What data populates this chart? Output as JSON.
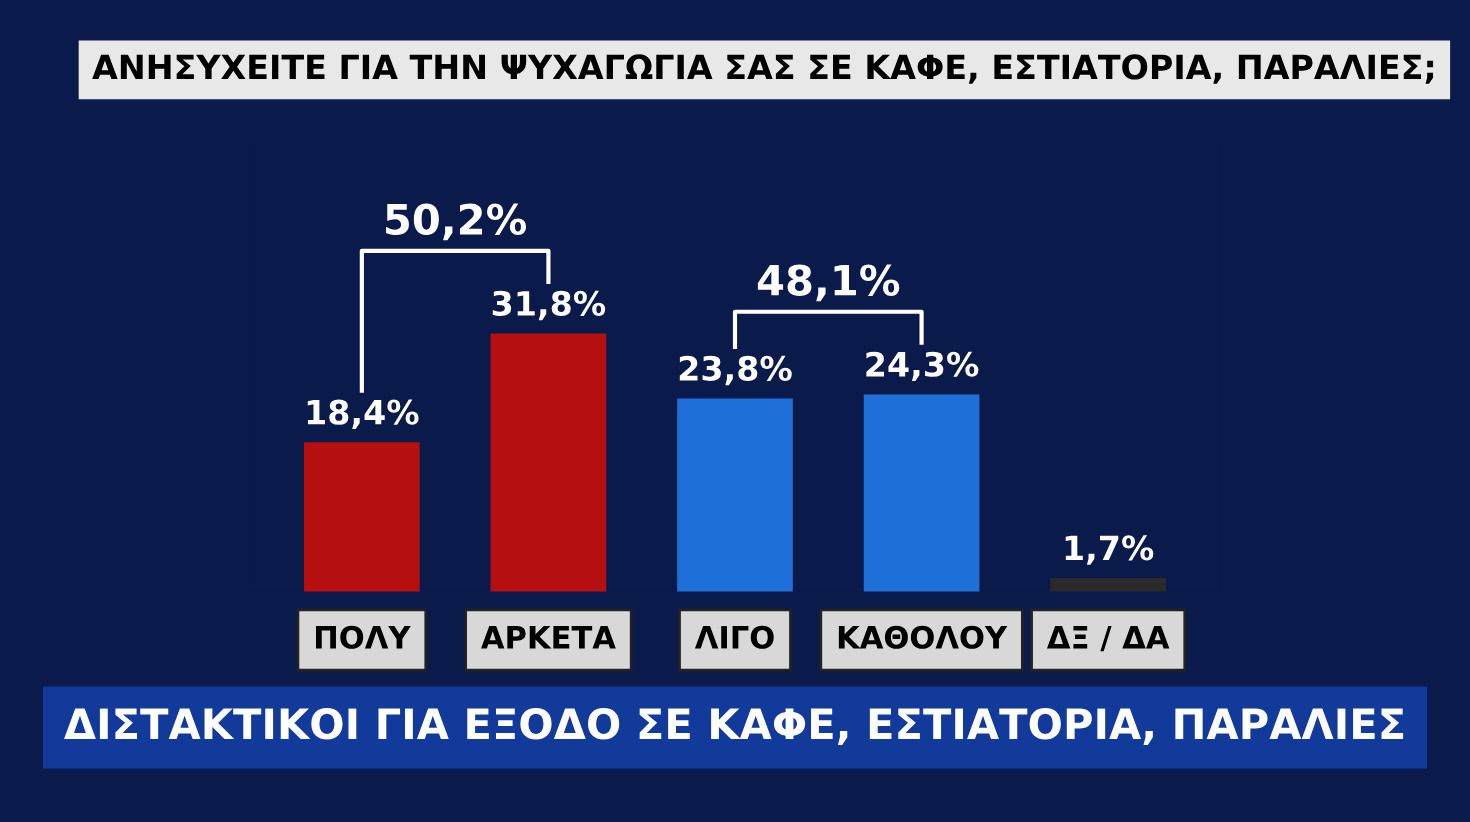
{
  "chart_data": {
    "type": "bar",
    "title": "ΑΝΗΣΥΧΕΙΤΕ ΓΙΑ ΤΗΝ ΨΥΧΑΓΩΓΙΑ ΣΑΣ ΣΕ ΚΑΦΕ, ΕΣΤΙΑΤΟΡΙΑ, ΠΑΡΑΛΙΕΣ;",
    "subtitle": "ΔΙΣΤΑΚΤΙΚΟΙ ΓΙΑ ΕΞΟΔΟ ΣΕ ΚΑΦΕ, ΕΣΤΙΑΤΟΡΙΑ, ΠΑΡΑΛΙΕΣ",
    "categories": [
      "ΠΟΛΥ",
      "ΑΡΚΕΤΑ",
      "ΛΙΓΟ",
      "ΚΑΘΟΛΟΥ",
      "ΔΞ / ΔΑ"
    ],
    "values": [
      18.4,
      31.8,
      23.8,
      24.3,
      1.7
    ],
    "colors": [
      "#b5100f",
      "#b5100f",
      "#1f6fd8",
      "#1f6fd8",
      "#2a2a2a"
    ],
    "value_labels": [
      "18,4%",
      "31,8%",
      "23,8%",
      "24,3%",
      "1,7%"
    ],
    "annotations": [
      "50,2%",
      "48,1%"
    ],
    "grid": false,
    "legend": false
  }
}
